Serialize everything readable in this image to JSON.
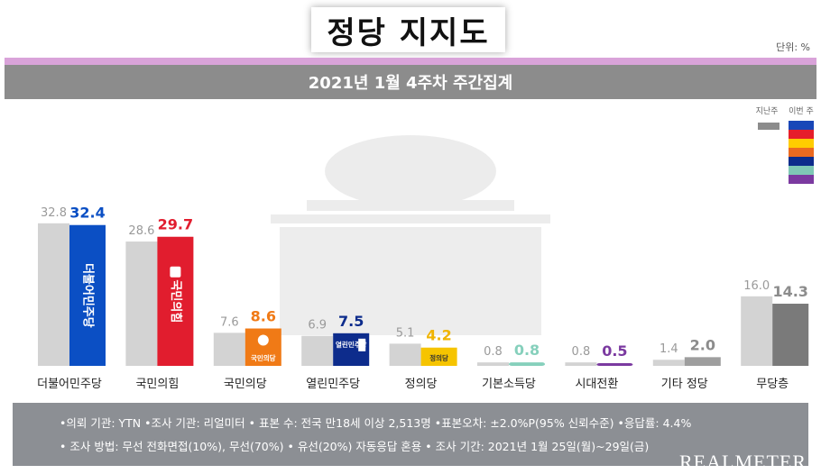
{
  "header": {
    "title": "정당 지지도",
    "unit": "단위: %"
  },
  "subtitle": "2021년 1월 4주차 주간집계",
  "legend": {
    "prev": "지난주",
    "curr": "이번 주"
  },
  "colors": {
    "prev": "#d3d3d3",
    "legend_prev": "#8c8c8c",
    "swatches": [
      "#1947b8",
      "#e61e2b",
      "#ffcc00",
      "#ec6a1f",
      "#0d2c8c",
      "#7fc8b6",
      "#7b3aa0"
    ]
  },
  "chart_data": {
    "type": "bar",
    "categories": [
      "더불어민주당",
      "국민의힘",
      "국민의당",
      "열린민주당",
      "정의당",
      "기본소득당",
      "시대전환",
      "기타 정당",
      "무당층"
    ],
    "series": [
      {
        "name": "지난주",
        "values": [
          32.8,
          28.6,
          7.6,
          6.9,
          5.1,
          0.8,
          0.8,
          1.4,
          16.0
        ]
      },
      {
        "name": "이번 주",
        "values": [
          32.4,
          29.7,
          8.6,
          7.5,
          4.2,
          0.8,
          0.5,
          2.0,
          14.3
        ]
      }
    ],
    "prev_labels": [
      "32.8",
      "28.6",
      "7.6",
      "6.9",
      "5.1",
      "0.8",
      "0.8",
      "1.4",
      "16.0"
    ],
    "curr_labels": [
      "32.4",
      "29.7",
      "8.6",
      "7.5",
      "4.2",
      "0.8",
      "0.5",
      "2.0",
      "14.3"
    ],
    "curr_colors": [
      "#0b4fc4",
      "#e11d2e",
      "#f07a16",
      "#0d2c8c",
      "#f6c400",
      "#86d0bc",
      "#7b3aa0",
      "#9e9e9e",
      "#7a7a7a"
    ],
    "curr_label_colors": [
      "#0b4fc4",
      "#e11d2e",
      "#f07a16",
      "#0d2c8c",
      "#f0b400",
      "#86d0bc",
      "#7b3aa0",
      "#8c8c8c",
      "#8c8c8c"
    ],
    "bar_logos": [
      "더불어민주당",
      "국민의힘",
      "국민의당",
      "열린민주당",
      "정의당",
      "",
      "",
      "",
      ""
    ],
    "ylim": [
      0,
      34
    ]
  },
  "footer": {
    "line1": "•의뢰 기관: YTN •조사 기관: 리얼미터 • 표본 수: 전국 만18세 이상 2,513명 •표본오차: ±2.0%P(95% 신뢰수준) •응답률: 4.4%",
    "line2": "• 조사 방법: 무선 전화면접(10%), 무선(70%) • 유선(20%) 자동응답 혼용 • 조사 기간: 2021년 1월 25일(월)~29일(금)",
    "brand": "REALMETER"
  }
}
